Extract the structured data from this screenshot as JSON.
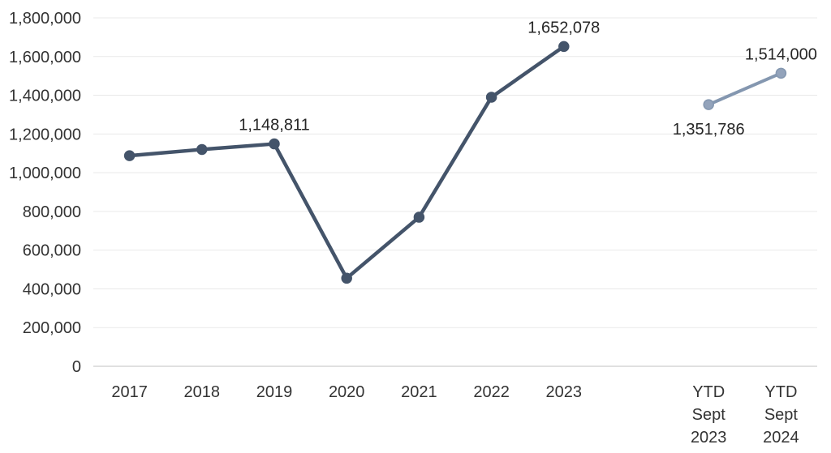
{
  "chart_data": {
    "type": "line",
    "title": "",
    "xlabel": "",
    "ylabel": "",
    "ylim": [
      0,
      1800000
    ],
    "grid": true,
    "legend": "none",
    "colors": {
      "series_dark": "#44546A",
      "series_light": "#8497B0",
      "series_light_marker_fill": "#93A3BB",
      "gridline": "#E9E9E9",
      "axis_line": "#D6D6D6",
      "tick_text": "#333333",
      "label_text": "#262626",
      "background": "#FFFFFF"
    },
    "y_ticks": [
      {
        "value": 1800000,
        "label": "1,800,000"
      },
      {
        "value": 1600000,
        "label": "1,600,000"
      },
      {
        "value": 1400000,
        "label": "1,400,000"
      },
      {
        "value": 1200000,
        "label": "1,200,000"
      },
      {
        "value": 1000000,
        "label": "1,000,000"
      },
      {
        "value": 800000,
        "label": "800,000"
      },
      {
        "value": 600000,
        "label": "600,000"
      },
      {
        "value": 400000,
        "label": "400,000"
      },
      {
        "value": 200000,
        "label": "200,000"
      },
      {
        "value": 0,
        "label": "0"
      }
    ],
    "x_labels": [
      [
        "2017"
      ],
      [
        "2018"
      ],
      [
        "2019"
      ],
      [
        "2020"
      ],
      [
        "2021"
      ],
      [
        "2022"
      ],
      [
        "2023"
      ],
      [],
      [
        "YTD",
        "Sept",
        "2023"
      ],
      [
        "YTD",
        "Sept",
        "2024"
      ]
    ],
    "series": [
      {
        "name": "annual-2017-2023",
        "color": "#44546A",
        "marker_fill": "#44546A",
        "marker_stroke": "#44546A",
        "line_width": 4.5,
        "points": [
          {
            "slot": 0,
            "x": "2017",
            "value": 1088000
          },
          {
            "slot": 1,
            "x": "2018",
            "value": 1120000
          },
          {
            "slot": 2,
            "x": "2019",
            "value": 1148811,
            "label": "1,148,811",
            "label_position": "above"
          },
          {
            "slot": 3,
            "x": "2020",
            "value": 455000
          },
          {
            "slot": 4,
            "x": "2021",
            "value": 770000
          },
          {
            "slot": 5,
            "x": "2022",
            "value": 1390000
          },
          {
            "slot": 6,
            "x": "2023",
            "value": 1652078,
            "label": "1,652,078",
            "label_position": "above"
          }
        ]
      },
      {
        "name": "ytd-september",
        "color": "#8497B0",
        "marker_fill": "#93A3BB",
        "marker_stroke": "#8497B0",
        "line_width": 4,
        "points": [
          {
            "slot": 8,
            "x": "YTD Sept 2023",
            "value": 1351786,
            "label": "1,351,786",
            "label_position": "below"
          },
          {
            "slot": 9,
            "x": "YTD Sept 2024",
            "value": 1514000,
            "label": "1,514,000",
            "label_position": "above"
          }
        ]
      }
    ]
  }
}
